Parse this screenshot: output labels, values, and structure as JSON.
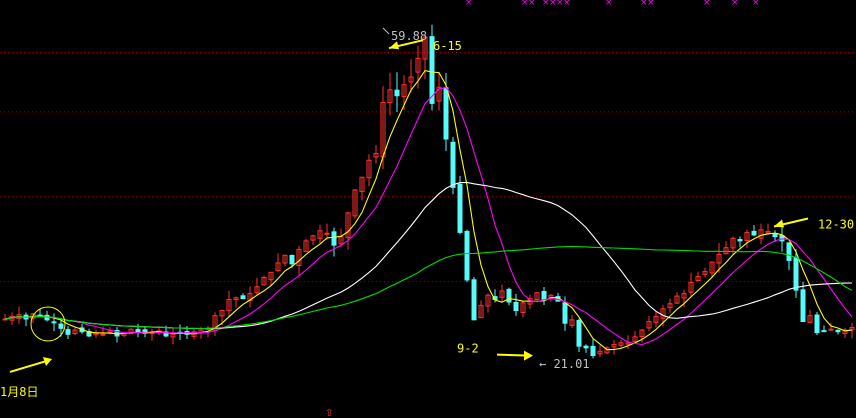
{
  "colors": {
    "background": "#000000",
    "candle_up": "#ff3030",
    "candle_down": "#54fcfc",
    "grid": "#a00000",
    "ma_short": "#ffff00",
    "ma_mid": "#ff00ff",
    "ma_long": "#ffffff",
    "ma_longest": "#00dd00",
    "annotation": "#ffff00",
    "price_label": "#c0c0c0",
    "marker": "#ff00ff"
  },
  "chart_data": {
    "type": "candlestick",
    "grid": "dotted horizontal",
    "ylim": [
      17,
      62
    ],
    "x_count": 122,
    "close": [
      25.6,
      25.9,
      26.1,
      25.6,
      26.2,
      26.0,
      25.5,
      25.2,
      24.5,
      23.8,
      24.3,
      24.1,
      23.6,
      24.0,
      23.8,
      24.2,
      23.6,
      23.9,
      24.4,
      24.1,
      23.9,
      24.0,
      24.2,
      23.6,
      23.8,
      24.0,
      23.8,
      24.1,
      24.3,
      24.5,
      26.0,
      26.6,
      27.9,
      28.1,
      28.0,
      28.6,
      29.4,
      30.5,
      31.1,
      32.2,
      33.1,
      32.1,
      33.8,
      34.8,
      35.4,
      36.0,
      35.7,
      34.3,
      35.3,
      38.1,
      40.8,
      42.3,
      44.3,
      45.1,
      51.1,
      52.6,
      51.9,
      53.2,
      54.1,
      56.3,
      58.8,
      51.0,
      52.9,
      46.8,
      41.1,
      35.8,
      30.2,
      25.5,
      27.2,
      28.4,
      27.9,
      28.9,
      27.6,
      26.6,
      27.5,
      28.0,
      28.7,
      27.9,
      28.4,
      27.7,
      25.1,
      25.5,
      22.4,
      22.2,
      21.3,
      21.8,
      22.2,
      22.6,
      22.8,
      22.8,
      23.5,
      24.3,
      25.3,
      25.9,
      26.8,
      27.4,
      28.3,
      28.6,
      29.9,
      30.6,
      31.2,
      32.3,
      33.2,
      34.0,
      35.1,
      34.8,
      35.8,
      35.5,
      36.1,
      35.9,
      35.3,
      34.8,
      32.5,
      29.0,
      25.3,
      26.0,
      24.0,
      24.2,
      24.4,
      24.1,
      24.3,
      24.6
    ],
    "moving_averages": [
      {
        "period": 5,
        "color": "#ffff00"
      },
      {
        "period": 10,
        "color": "#ff00ff"
      },
      {
        "period": 30,
        "color": "#ffffff"
      },
      {
        "period": 60,
        "color": "#00dd00"
      }
    ],
    "annotations": [
      {
        "text": "59.88",
        "x_index": 54,
        "y": 59.88,
        "kind": "high"
      },
      {
        "text": "← 21.01",
        "x_index": 76,
        "y": 21.01,
        "kind": "low"
      },
      {
        "text": "6-15",
        "x_index": 54,
        "y": 57.5,
        "kind": "arrow-left"
      },
      {
        "text": "9-2",
        "x_index": 76,
        "y": 21.4,
        "kind": "arrow-right"
      },
      {
        "text": "12-30",
        "x_index": 109,
        "y": 36.5,
        "kind": "arrow-left"
      },
      {
        "text": "1月8日",
        "x_index": 5,
        "y": 23.6,
        "kind": "arrow-up-right"
      }
    ]
  }
}
